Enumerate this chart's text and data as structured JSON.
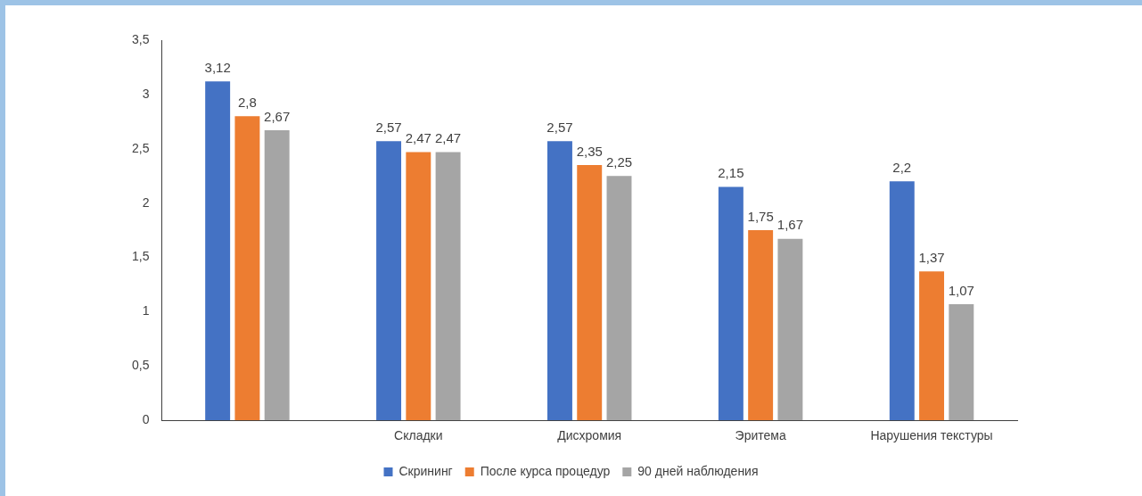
{
  "chart_data": {
    "type": "bar",
    "categories": [
      null,
      "Складки",
      "Дисхромия",
      "Эритема",
      "Нарушения текстуры"
    ],
    "series": [
      {
        "name": "Скрининг",
        "color": "#4472c4",
        "values": [
          3.12,
          2.57,
          2.57,
          2.15,
          2.2
        ],
        "value_labels": [
          "3,12",
          "2,57",
          "2,57",
          "2,15",
          "2,2"
        ]
      },
      {
        "name": "После курса процедур",
        "color": "#ed7d31",
        "values": [
          2.8,
          2.47,
          2.35,
          1.75,
          1.37
        ],
        "value_labels": [
          "2,8",
          "2,47",
          "2,35",
          "1,75",
          "1,37"
        ]
      },
      {
        "name": "90 дней наблюдения",
        "color": "#a5a5a5",
        "values": [
          2.67,
          2.47,
          2.25,
          1.67,
          1.07
        ],
        "value_labels": [
          "2,67",
          "2,47",
          "2,25",
          "1,67",
          "1,07"
        ]
      }
    ],
    "ylim": [
      0,
      3.5
    ],
    "yticks": [
      0,
      {
        "value": 0.5,
        "label": "0,5"
      },
      1,
      {
        "value": 1.5,
        "label": "1,5"
      },
      2,
      {
        "value": 2.5,
        "label": "2,5"
      },
      3,
      {
        "value": 3.5,
        "label": "3,5"
      }
    ],
    "grid": false,
    "legend": "bottom"
  }
}
